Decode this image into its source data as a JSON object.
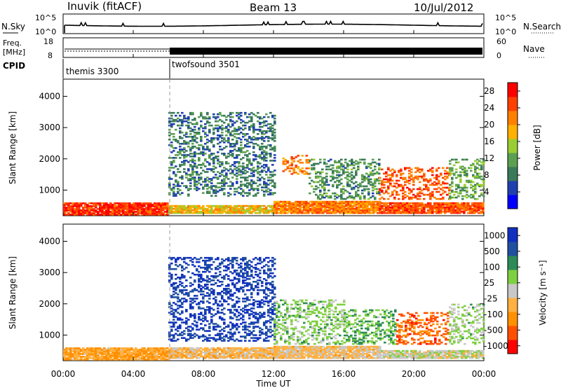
{
  "header": {
    "station": "Inuvik (fitACF)",
    "beam": "Beam 13",
    "date": "10/Jul/2012"
  },
  "noise_panel": {
    "left_label": "N.Sky",
    "right_label": "N.Search",
    "left_ticks": [
      "10^5",
      "10^0"
    ],
    "right_ticks": [
      "10^5",
      "10^0"
    ]
  },
  "freq_panel": {
    "left_label": "Freq.",
    "left_unit": "[MHz]",
    "right_label": "Nave",
    "left_ticks": [
      "18",
      "8"
    ],
    "right_ticks": [
      "60",
      "0"
    ]
  },
  "cpid_panel": {
    "label": "CPID",
    "segments": [
      {
        "name": "themis 3300",
        "start_hour": 0
      },
      {
        "name": "twofsound 3501",
        "start_hour": 6
      }
    ]
  },
  "colors": {
    "power_scale": [
      "#0000ff",
      "#2040b0",
      "#3a7a5a",
      "#5aa050",
      "#9acd32",
      "#ffb000",
      "#ff8000",
      "#ff4000",
      "#ff0000"
    ],
    "velocity_scale": [
      "#ff0000",
      "#ff5000",
      "#ff9000",
      "#ffb040",
      "#c8c8c8",
      "#7fd040",
      "#2e8b57",
      "#2050a0",
      "#1030c0"
    ]
  },
  "chart_data": [
    {
      "type": "heatmap",
      "title": "",
      "xlabel": "Time UT",
      "ylabel": "Slant Range [km]",
      "x_ticks": [
        "00:00",
        "04:00",
        "08:00",
        "12:00",
        "16:00",
        "20:00",
        "00:00"
      ],
      "x_range_hours": [
        0,
        24
      ],
      "y_ticks": [
        "1000",
        "2000",
        "3000",
        "4000"
      ],
      "ylim": [
        180,
        4550
      ],
      "colorbar": {
        "label": "Power [dB]",
        "ticks": [
          "4",
          "8",
          "12",
          "16",
          "20",
          "24",
          "28"
        ],
        "range": [
          0,
          30
        ]
      },
      "regions": [
        {
          "t0": 0.0,
          "t1": 6.0,
          "r0": 200,
          "r1": 600,
          "value": 26
        },
        {
          "t0": 6.0,
          "t1": 12.0,
          "r0": 250,
          "r1": 500,
          "value": 18
        },
        {
          "t0": 12.0,
          "t1": 18.0,
          "r0": 250,
          "r1": 650,
          "value": 22
        },
        {
          "t0": 18.0,
          "t1": 24.0,
          "r0": 250,
          "r1": 600,
          "value": 24
        },
        {
          "t0": 6.0,
          "t1": 12.0,
          "r0": 800,
          "r1": 3500,
          "value": 8
        },
        {
          "t0": 12.5,
          "t1": 14.0,
          "r0": 1500,
          "r1": 2100,
          "value": 22
        },
        {
          "t0": 14.0,
          "t1": 18.0,
          "r0": 700,
          "r1": 2000,
          "value": 10
        },
        {
          "t0": 18.0,
          "t1": 22.0,
          "r0": 700,
          "r1": 1700,
          "value": 24
        },
        {
          "t0": 22.0,
          "t1": 24.0,
          "r0": 700,
          "r1": 2000,
          "value": 12
        }
      ]
    },
    {
      "type": "heatmap",
      "title": "",
      "xlabel": "Time UT",
      "ylabel": "Slant Range [km]",
      "x_ticks": [
        "00:00",
        "04:00",
        "08:00",
        "12:00",
        "16:00",
        "20:00",
        "00:00"
      ],
      "x_range_hours": [
        0,
        24
      ],
      "y_ticks": [
        "1000",
        "2000",
        "3000",
        "4000"
      ],
      "ylim": [
        180,
        4550
      ],
      "colorbar": {
        "label": "Velocity [m s⁻¹]",
        "ticks": [
          "1000",
          "500",
          "100",
          "25",
          "-25",
          "-100",
          "-500",
          "-1000"
        ],
        "range": [
          -1000,
          1000
        ]
      },
      "regions": [
        {
          "t0": 0.0,
          "t1": 6.0,
          "r0": 200,
          "r1": 600,
          "value": -300
        },
        {
          "t0": 6.0,
          "t1": 12.0,
          "r0": 250,
          "r1": 600,
          "value": -200
        },
        {
          "t0": 12.0,
          "t1": 18.0,
          "r0": 250,
          "r1": 650,
          "value": -150
        },
        {
          "t0": 18.0,
          "t1": 24.0,
          "r0": 250,
          "r1": 500,
          "value": 10
        },
        {
          "t0": 6.0,
          "t1": 12.0,
          "r0": 800,
          "r1": 3500,
          "value": 800
        },
        {
          "t0": 12.0,
          "t1": 16.0,
          "r0": 700,
          "r1": 2100,
          "value": 200
        },
        {
          "t0": 16.0,
          "t1": 19.0,
          "r0": 700,
          "r1": 1800,
          "value": 300
        },
        {
          "t0": 19.0,
          "t1": 22.0,
          "r0": 700,
          "r1": 1700,
          "value": -600
        },
        {
          "t0": 22.0,
          "t1": 24.0,
          "r0": 700,
          "r1": 2000,
          "value": 150
        }
      ]
    }
  ]
}
